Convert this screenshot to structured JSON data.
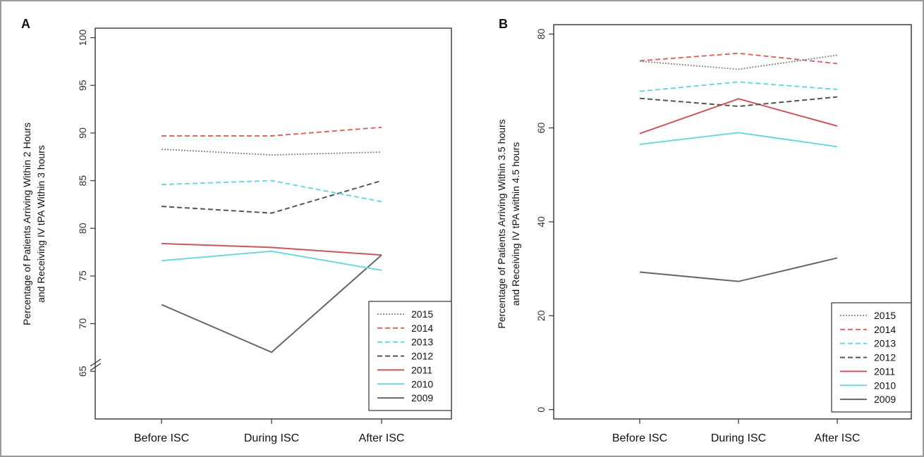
{
  "chart_data": [
    {
      "type": "line",
      "panel_label": "A",
      "ylabel": [
        "Percentage of Patients  Arriving Within 2 Hours",
        "and Receiving IV tPA Within 3 hours"
      ],
      "categories": [
        "Before ISC",
        "During ISC",
        "After ISC"
      ],
      "ylim": [
        60,
        101
      ],
      "y_ticks": [
        65,
        70,
        75,
        80,
        85,
        90,
        95,
        100
      ],
      "axis_break": true,
      "legend_position": "bottom-right",
      "series": [
        {
          "name": "2015",
          "values": [
            88.3,
            87.7,
            88.0
          ],
          "color": "#8f8f8f",
          "style": "dotted"
        },
        {
          "name": "2014",
          "values": [
            89.7,
            89.7,
            90.6
          ],
          "color": "#d46a6a",
          "style": "dashed"
        },
        {
          "name": "2013",
          "values": [
            84.6,
            85.0,
            82.8
          ],
          "color": "#6fd6dc",
          "style": "dashed"
        },
        {
          "name": "2012",
          "values": [
            82.3,
            81.6,
            85.0
          ],
          "color": "#555555",
          "style": "dashed"
        },
        {
          "name": "2011",
          "values": [
            78.4,
            78.0,
            77.2
          ],
          "color": "#c9575e",
          "style": "solid"
        },
        {
          "name": "2010",
          "values": [
            76.6,
            77.6,
            75.6
          ],
          "color": "#6fd6dc",
          "style": "solid"
        },
        {
          "name": "2009",
          "values": [
            72.0,
            67.0,
            77.2
          ],
          "color": "#666666",
          "style": "solid"
        }
      ]
    },
    {
      "type": "line",
      "panel_label": "B",
      "ylabel": [
        "Percentage of Patients Arriving Within 3.5 hours",
        "and Receiving IV tPA within 4.5 hours"
      ],
      "categories": [
        "Before ISC",
        "During ISC",
        "After ISC"
      ],
      "ylim": [
        -2,
        82
      ],
      "y_ticks": [
        0,
        20,
        40,
        60,
        80
      ],
      "axis_break": false,
      "legend_position": "bottom-right",
      "series": [
        {
          "name": "2015",
          "values": [
            74.2,
            72.5,
            75.5
          ],
          "color": "#8f8f8f",
          "style": "dotted"
        },
        {
          "name": "2014",
          "values": [
            74.3,
            75.9,
            73.7
          ],
          "color": "#d46a6a",
          "style": "dashed"
        },
        {
          "name": "2013",
          "values": [
            67.8,
            69.8,
            68.2
          ],
          "color": "#6fd6dc",
          "style": "dashed"
        },
        {
          "name": "2012",
          "values": [
            66.3,
            64.6,
            66.6
          ],
          "color": "#555555",
          "style": "dashed"
        },
        {
          "name": "2011",
          "values": [
            58.8,
            66.2,
            60.4
          ],
          "color": "#c9575e",
          "style": "solid"
        },
        {
          "name": "2010",
          "values": [
            56.5,
            59.0,
            56.0
          ],
          "color": "#6fd6dc",
          "style": "solid"
        },
        {
          "name": "2009",
          "values": [
            29.3,
            27.3,
            32.3
          ],
          "color": "#666666",
          "style": "solid"
        }
      ]
    }
  ]
}
